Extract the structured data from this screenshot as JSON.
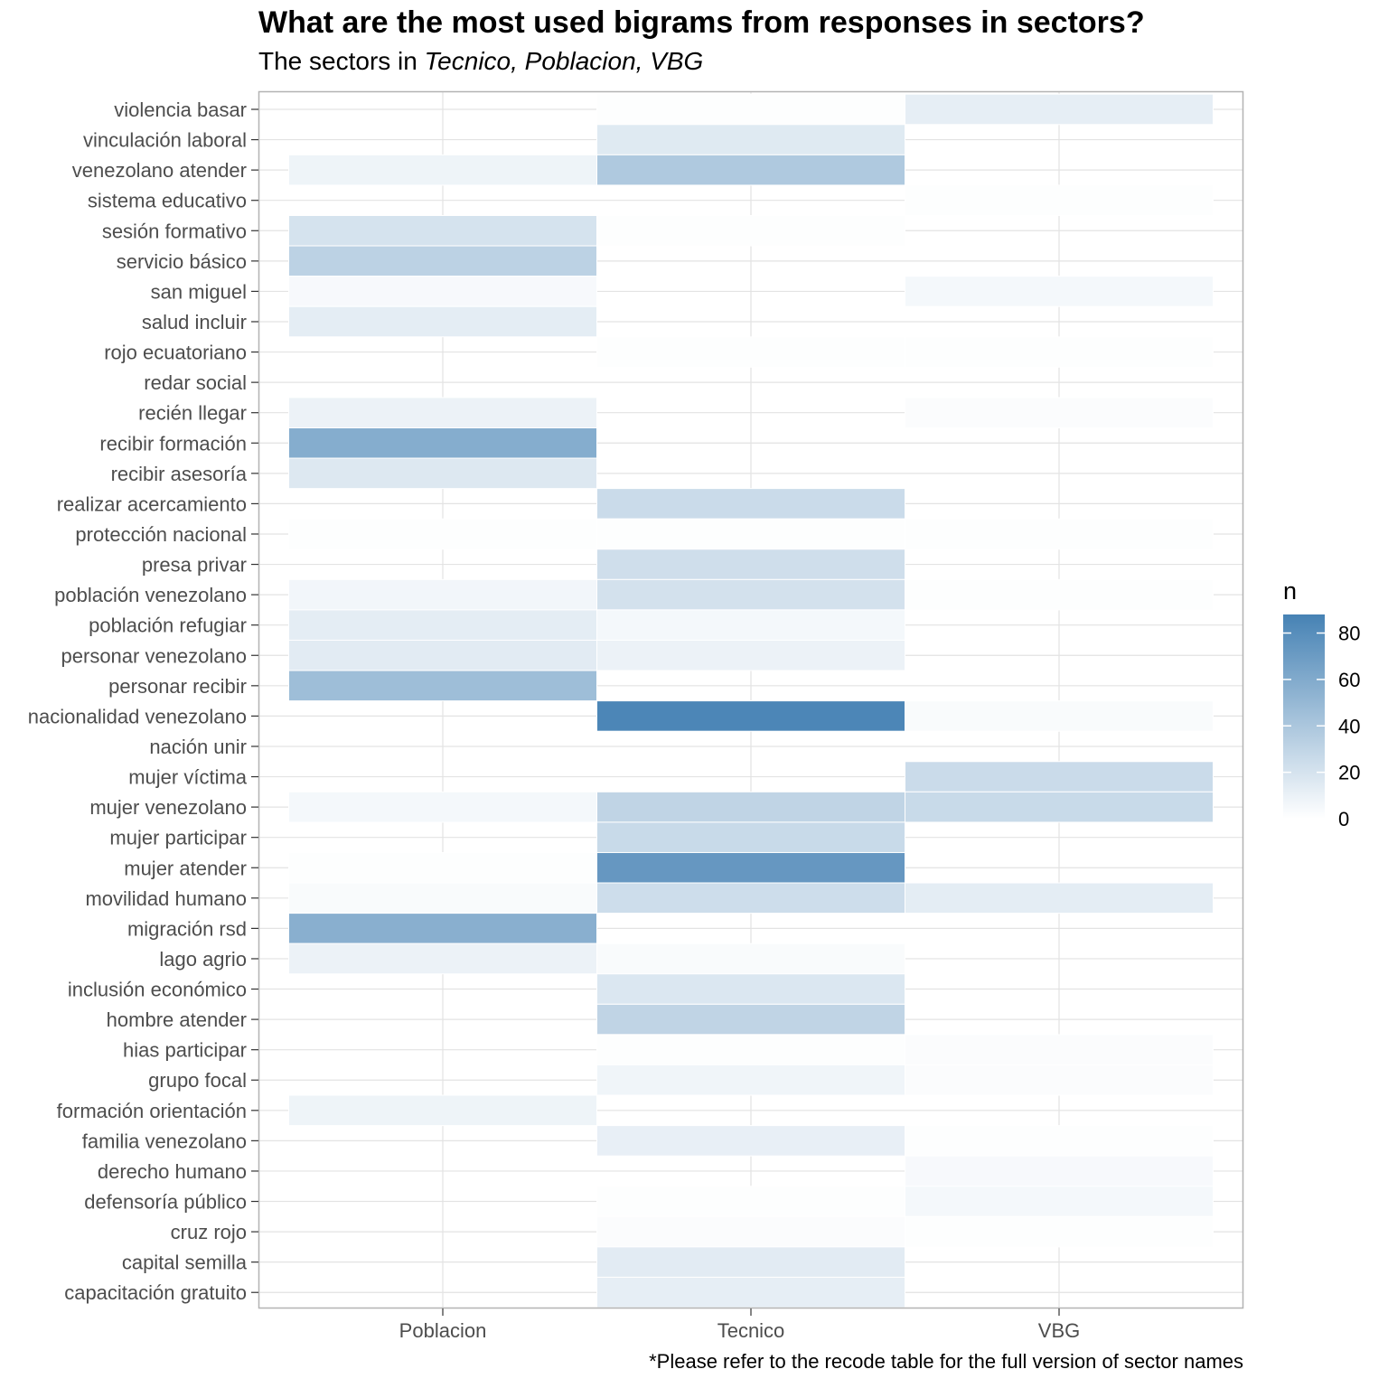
{
  "chart_data": {
    "type": "heatmap",
    "title": "What are the most used bigrams from responses in sectors?",
    "subtitle_prefix": "The sectors in ",
    "subtitle_emphasis": "Tecnico, Poblacion, VBG",
    "caption": "*Please refer to the recode table for the full version of sector names",
    "x_categories": [
      "Poblacion",
      "Tecnico",
      "VBG"
    ],
    "y_categories": [
      "violencia basar",
      "vinculación laboral",
      "venezolano atender",
      "sistema educativo",
      "sesión formativo",
      "servicio básico",
      "san miguel",
      "salud incluir",
      "rojo ecuatoriano",
      "redar social",
      "recién llegar",
      "recibir formación",
      "recibir asesoría",
      "realizar acercamiento",
      "protección nacional",
      "presa privar",
      "población venezolano",
      "población refugiar",
      "personar venezolano",
      "personar recibir",
      "nacionalidad venezolano",
      "nación unir",
      "mujer víctima",
      "mujer venezolano",
      "mujer participar",
      "mujer atender",
      "movilidad humano",
      "migración rsd",
      "lago agrio",
      "inclusión económico",
      "hombre atender",
      "hias participar",
      "grupo focal",
      "formación orientación",
      "familia venezolano",
      "derecho humano",
      "defensoría público",
      "cruz rojo",
      "capital semilla",
      "capacitación gratuito"
    ],
    "values": [
      [
        0,
        1,
        12
      ],
      [
        0,
        15,
        0
      ],
      [
        8,
        38,
        0
      ],
      [
        0,
        0,
        1
      ],
      [
        20,
        1,
        0
      ],
      [
        32,
        0,
        0
      ],
      [
        4,
        0,
        5
      ],
      [
        13,
        0,
        0
      ],
      [
        0,
        1,
        1
      ],
      [
        0,
        0,
        0
      ],
      [
        9,
        0,
        2
      ],
      [
        58,
        0,
        0
      ],
      [
        16,
        0,
        0
      ],
      [
        0,
        25,
        0
      ],
      [
        1,
        1,
        1
      ],
      [
        0,
        23,
        0
      ],
      [
        6,
        21,
        1
      ],
      [
        13,
        5,
        0
      ],
      [
        14,
        9,
        0
      ],
      [
        46,
        0,
        0
      ],
      [
        0,
        85,
        3
      ],
      [
        0,
        0,
        0
      ],
      [
        0,
        0,
        25
      ],
      [
        5,
        30,
        26
      ],
      [
        0,
        26,
        0
      ],
      [
        1,
        73,
        0
      ],
      [
        3,
        24,
        13
      ],
      [
        56,
        0,
        0
      ],
      [
        9,
        3,
        0
      ],
      [
        0,
        17,
        0
      ],
      [
        0,
        30,
        0
      ],
      [
        0,
        1,
        2
      ],
      [
        0,
        7,
        2
      ],
      [
        8,
        0,
        0
      ],
      [
        0,
        11,
        1
      ],
      [
        0,
        0,
        4
      ],
      [
        0,
        1,
        5
      ],
      [
        0,
        2,
        1
      ],
      [
        0,
        14,
        0
      ],
      [
        0,
        12,
        0
      ]
    ],
    "legend": {
      "title": "n",
      "ticks": [
        0,
        20,
        40,
        60,
        80
      ],
      "range": [
        0,
        88
      ],
      "low_color": "#ffffff",
      "high_color": "#4682b4"
    },
    "panel_background": "#ffffff",
    "grid": true
  }
}
